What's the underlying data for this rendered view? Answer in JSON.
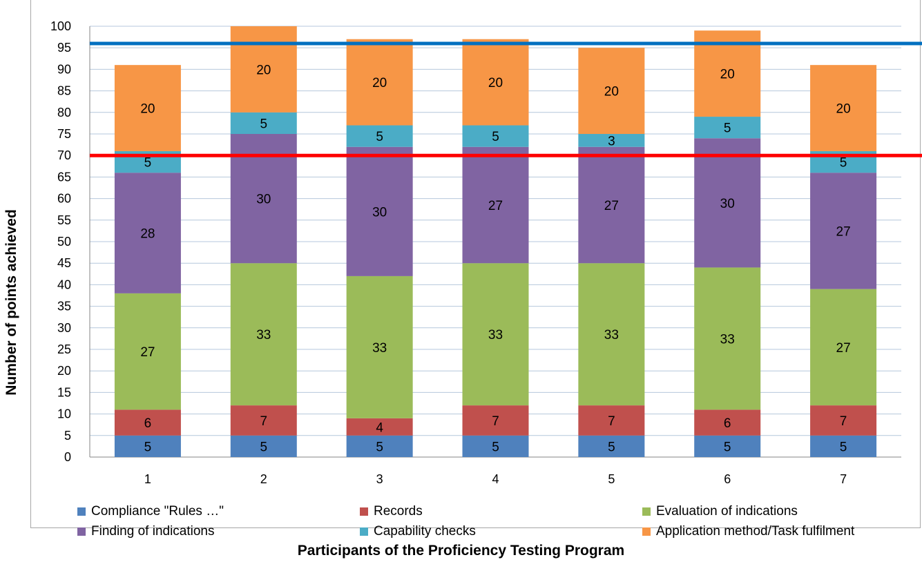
{
  "title": "",
  "chart_data": {
    "type": "bar",
    "stacked": true,
    "categories": [
      "1",
      "2",
      "3",
      "4",
      "5",
      "6",
      "7"
    ],
    "series": [
      {
        "name": "Compliance \"Rules …\"",
        "color": "#4f81bd",
        "values": [
          5,
          5,
          5,
          5,
          5,
          5,
          5
        ]
      },
      {
        "name": "Records",
        "color": "#c0504d",
        "values": [
          6,
          7,
          4,
          7,
          7,
          6,
          7
        ]
      },
      {
        "name": "Evaluation of indications",
        "color": "#9bbb59",
        "values": [
          27,
          33,
          33,
          33,
          33,
          33,
          27
        ]
      },
      {
        "name": "Finding of indications",
        "color": "#8064a2",
        "values": [
          28,
          30,
          30,
          27,
          27,
          30,
          27
        ]
      },
      {
        "name": "Capability checks",
        "color": "#4bacc6",
        "values": [
          5,
          5,
          5,
          5,
          3,
          5,
          5
        ]
      },
      {
        "name": "Application method/Task fulfilment",
        "color": "#f79646",
        "values": [
          20,
          20,
          20,
          20,
          20,
          20,
          20
        ]
      }
    ],
    "reference_lines": [
      {
        "value": 96,
        "color": "#0070c0"
      },
      {
        "value": 70,
        "color": "#ff0000"
      }
    ],
    "xlabel": "Participants of the Proficiency Testing Program",
    "ylabel": "Number of points achieved",
    "ylim": [
      0,
      100
    ],
    "ytick_step": 5,
    "grid": true,
    "legend_position": "bottom"
  }
}
